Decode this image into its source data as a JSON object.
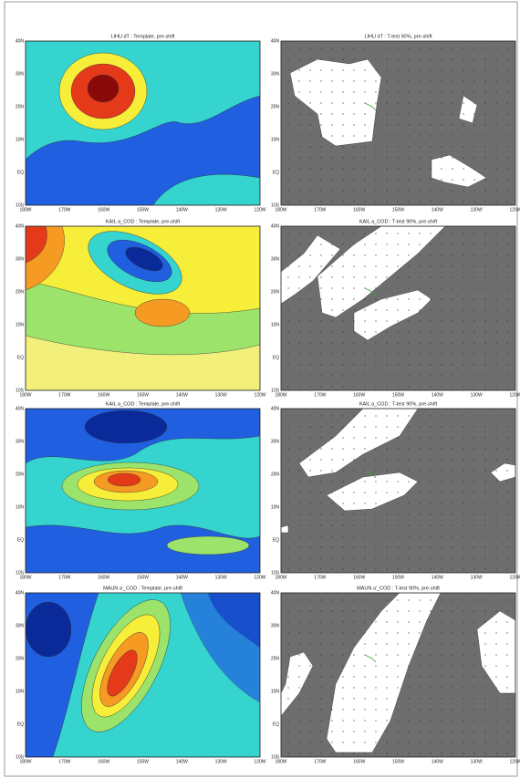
{
  "figure": {
    "longitude_labels": [
      "180W",
      "170W",
      "160W",
      "150W",
      "140W",
      "130W",
      "120W"
    ],
    "latitude_labels": [
      "40N",
      "30N",
      "20N",
      "10N",
      "EQ",
      "10S"
    ],
    "panels": [
      {
        "title": "LIHU dT : Template, pre-shift"
      },
      {
        "title": "LIHU dT : T-test 90%, pre-shift"
      },
      {
        "title": "KAIL a_COD : Template, pre-shift"
      },
      {
        "title": "KAIL a_COD : T-test 90%, pre-shift"
      },
      {
        "title": "KAIL a_COD : Template, pre-shift"
      },
      {
        "title": "KAIL a_COD : T-test 90%, pre-shift"
      },
      {
        "title": "MAUN a'_COD : Template, pre-shift"
      },
      {
        "title": "MAUN a'_COD : T-test 90%, pre-shift"
      }
    ]
  }
}
